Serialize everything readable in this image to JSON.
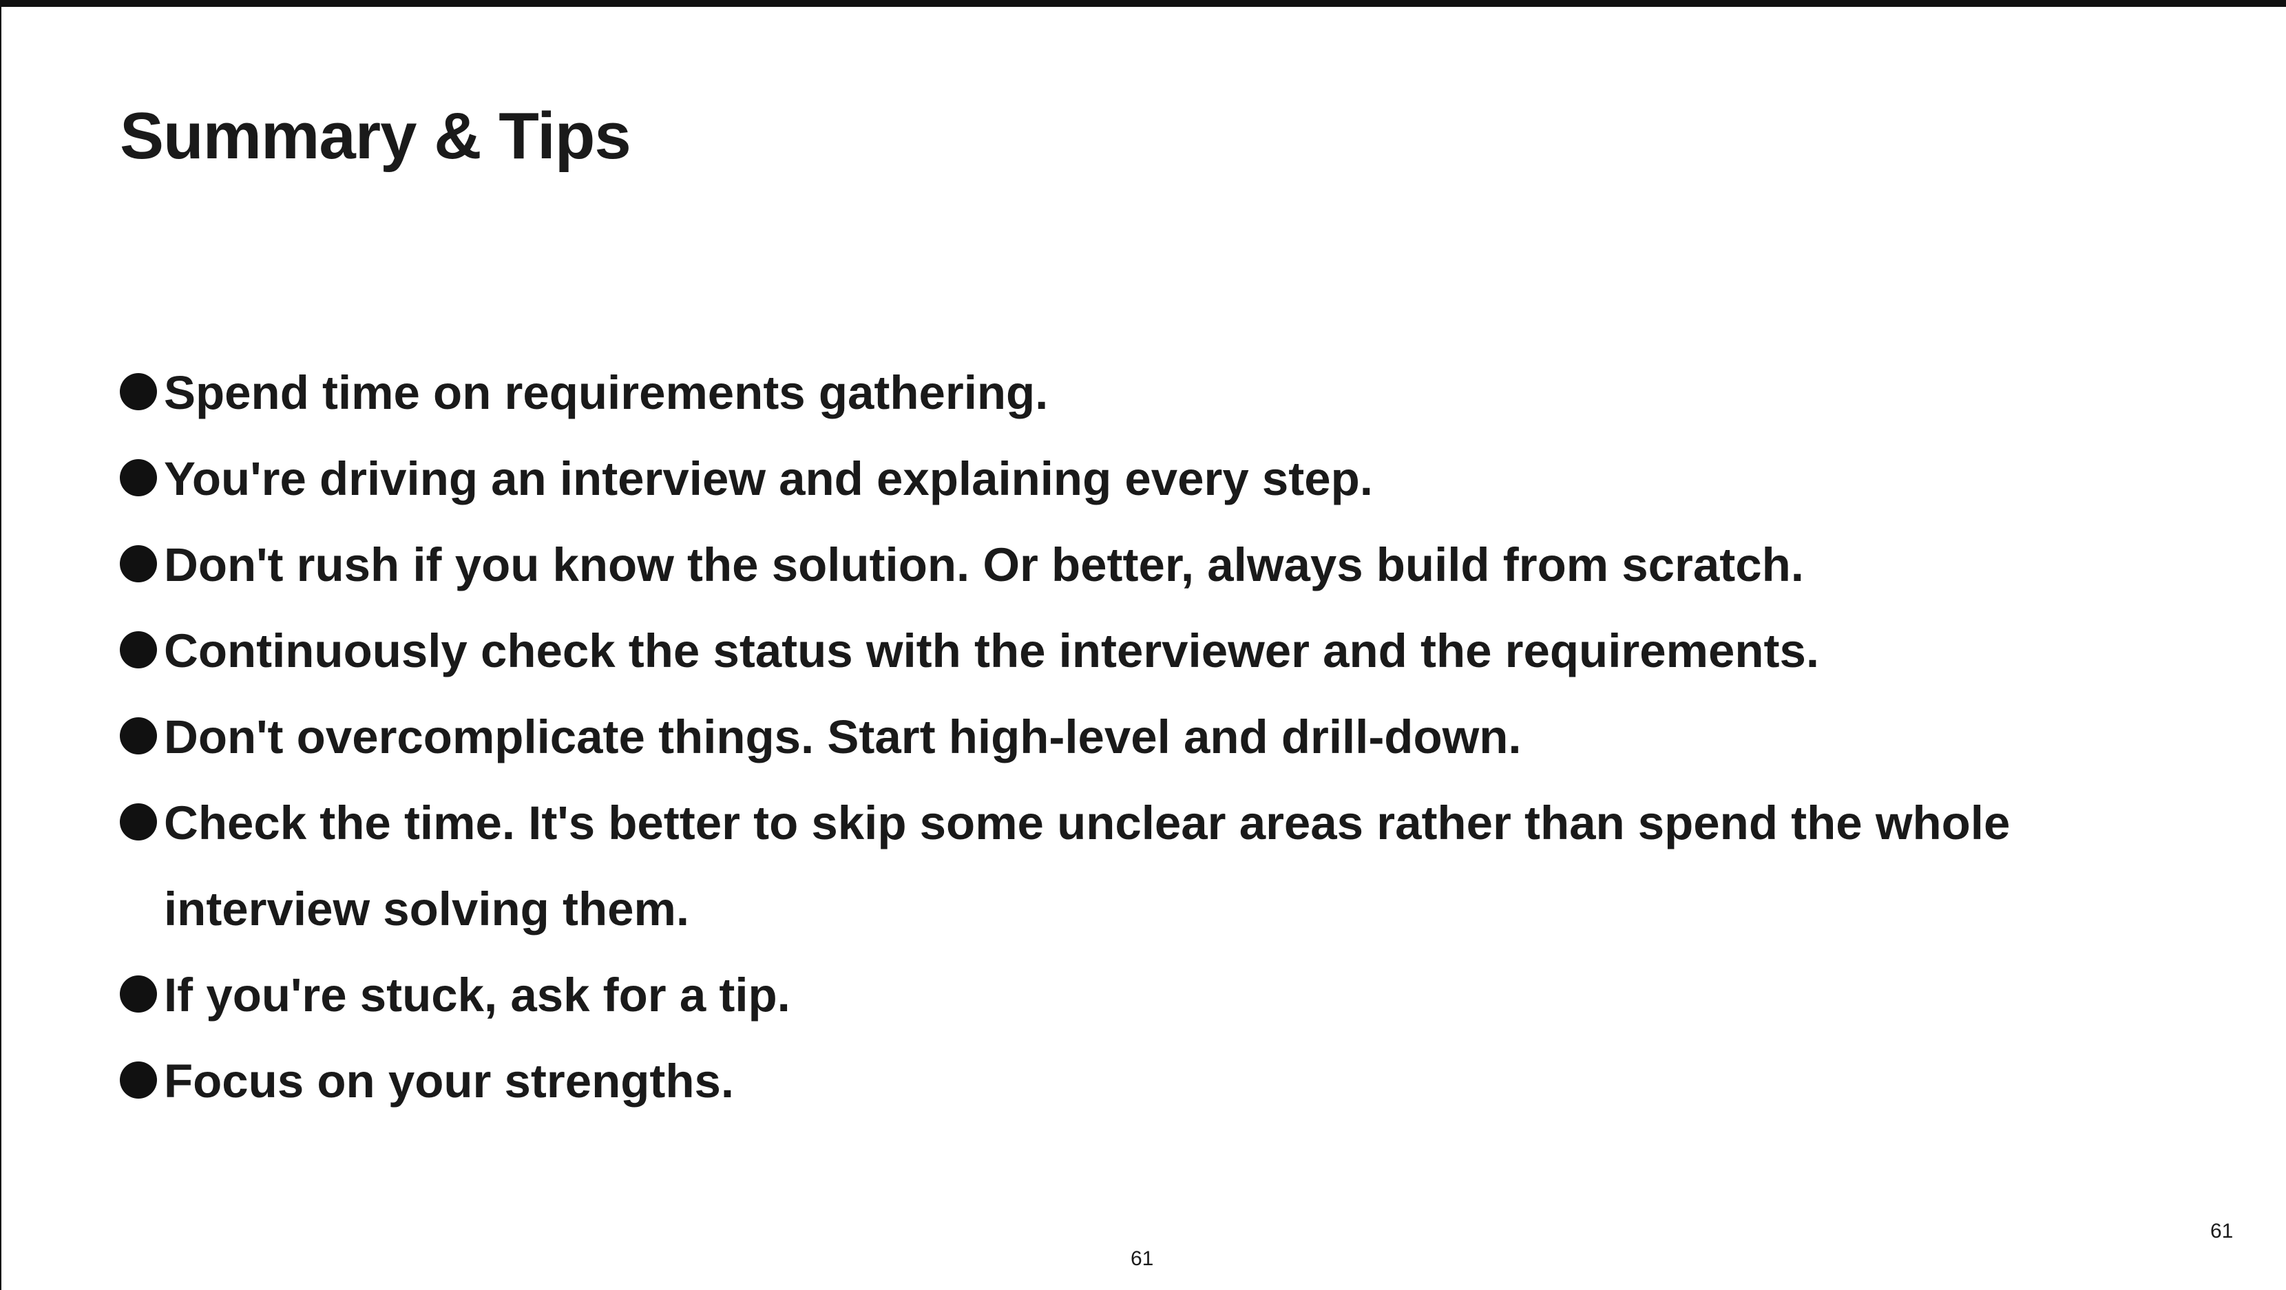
{
  "slide": {
    "title": "Summary & Tips",
    "bullets": [
      "Spend time on requirements gathering.",
      "You're driving an interview and explaining every step.",
      "Don't rush if you know the solution. Or better, always build from scratch.",
      "Continuously check the status with the interviewer and the requirements.",
      "Don't overcomplicate things. Start high-level and drill-down.",
      "Check the time. It's better to skip some unclear areas rather than spend the whole interview solving them.",
      "If you're stuck, ask for a tip.",
      "Focus on your strengths."
    ],
    "page_number_center": "61",
    "page_number_corner": "61"
  },
  "colors": {
    "background": "#ffffff",
    "text": "#1a1a1a",
    "bullet": "#111111",
    "frame_border": "#111111"
  },
  "icons": {
    "bullet": "filled-circle"
  }
}
